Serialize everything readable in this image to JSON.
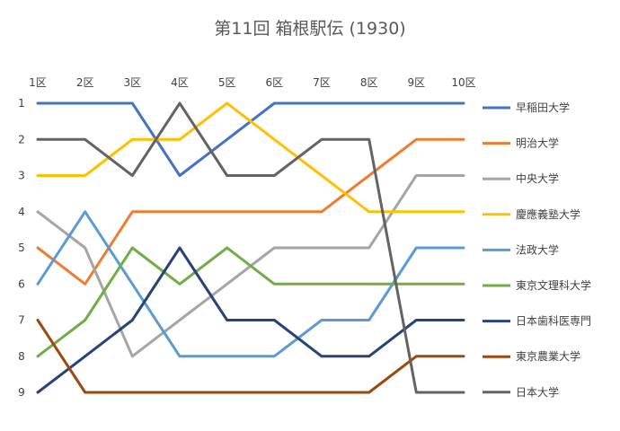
{
  "chart_data": {
    "type": "line",
    "title": "第11回 箱根駅伝 (1930)",
    "xlabel": "",
    "ylabel": "",
    "categories": [
      "1区",
      "2区",
      "3区",
      "4区",
      "5区",
      "6区",
      "7区",
      "8区",
      "9区",
      "10区"
    ],
    "y_ticks": [
      "1",
      "2",
      "3",
      "4",
      "5",
      "6",
      "7",
      "8",
      "9"
    ],
    "ylim": [
      1,
      9
    ],
    "y_reversed": true,
    "grid": false,
    "legend_position": "right",
    "series": [
      {
        "name": "早稲田大学",
        "color": "#4472C4",
        "values": [
          1,
          1,
          1,
          3,
          2,
          1,
          1,
          1,
          1,
          1
        ]
      },
      {
        "name": "明治大学",
        "color": "#ED7D31",
        "values": [
          5,
          6,
          4,
          4,
          4,
          4,
          4,
          3,
          2,
          2
        ]
      },
      {
        "name": "中央大学",
        "color": "#A5A5A5",
        "values": [
          4,
          5,
          8,
          7,
          6,
          5,
          5,
          5,
          3,
          3
        ]
      },
      {
        "name": "慶應義塾大学",
        "color": "#FFC000",
        "values": [
          3,
          3,
          2,
          2,
          1,
          2,
          3,
          4,
          4,
          4
        ]
      },
      {
        "name": "法政大学",
        "color": "#5B9BD5",
        "values": [
          6,
          4,
          6,
          8,
          8,
          8,
          7,
          7,
          5,
          5
        ]
      },
      {
        "name": "東京文理科大学",
        "color": "#70AD47",
        "values": [
          8,
          7,
          5,
          6,
          5,
          6,
          6,
          6,
          6,
          6
        ]
      },
      {
        "name": "日本歯科医専門",
        "color": "#264478",
        "values": [
          9,
          8,
          7,
          5,
          7,
          7,
          8,
          8,
          7,
          7
        ]
      },
      {
        "name": "東京農業大学",
        "color": "#9E480E",
        "values": [
          7,
          9,
          9,
          9,
          9,
          9,
          9,
          9,
          8,
          8
        ]
      },
      {
        "name": "日本大学",
        "color": "#636363",
        "values": [
          2,
          2,
          3,
          1,
          3,
          3,
          2,
          2,
          9,
          9
        ]
      }
    ]
  }
}
